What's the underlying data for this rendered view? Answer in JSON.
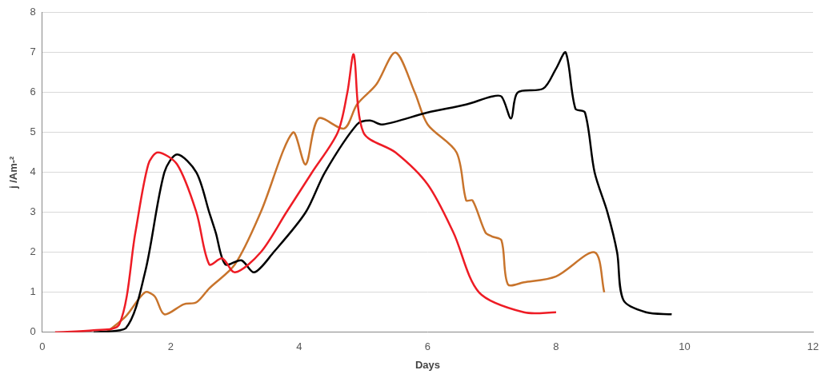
{
  "chart_data": {
    "type": "line",
    "x_label": "Days",
    "y_label": "j /Am-²",
    "xlim": [
      0,
      12
    ],
    "xticks": [
      0,
      2,
      4,
      6,
      8,
      10,
      12
    ],
    "ylim": [
      0,
      8
    ],
    "yticks": [
      0,
      1,
      2,
      3,
      4,
      5,
      6,
      7,
      8
    ],
    "grid": true,
    "series": [
      {
        "color": "#ee1c25",
        "x": [
          0.2,
          0.8,
          1.2,
          1.45,
          1.65,
          1.8,
          2.1,
          2.4,
          2.6,
          2.8,
          3.0,
          3.4,
          3.8,
          4.2,
          4.6,
          4.75,
          4.85,
          5.0,
          5.5,
          6.0,
          6.4,
          6.8,
          7.5,
          8.0
        ],
        "values": [
          0.0,
          0.05,
          0.2,
          2.5,
          4.2,
          4.5,
          4.2,
          3.0,
          1.7,
          1.85,
          1.5,
          2.0,
          3.0,
          4.0,
          5.0,
          6.0,
          6.95,
          5.0,
          4.5,
          3.7,
          2.5,
          1.0,
          0.5,
          0.5
        ]
      },
      {
        "color": "#000000",
        "x": [
          0.8,
          1.3,
          1.6,
          1.9,
          2.1,
          2.4,
          2.6,
          2.7,
          2.85,
          3.1,
          3.3,
          3.6,
          4.1,
          4.4,
          4.9,
          5.1,
          5.3,
          6.0,
          6.6,
          7.0,
          7.15,
          7.3,
          7.4,
          7.8,
          8.0,
          8.15,
          8.3,
          8.45,
          8.6,
          8.8,
          8.95,
          9.05,
          9.4,
          9.8
        ],
        "values": [
          0.0,
          0.1,
          1.5,
          4.0,
          4.45,
          4.0,
          3.0,
          2.5,
          1.7,
          1.8,
          1.5,
          2.0,
          3.0,
          4.0,
          5.2,
          5.3,
          5.2,
          5.5,
          5.7,
          5.9,
          5.9,
          5.35,
          6.0,
          6.1,
          6.6,
          7.0,
          5.6,
          5.5,
          4.0,
          3.0,
          2.0,
          0.8,
          0.5,
          0.45
        ]
      },
      {
        "color": "#c8742c",
        "x": [
          1.0,
          1.3,
          1.6,
          1.75,
          1.9,
          2.2,
          2.4,
          2.6,
          3.0,
          3.4,
          3.9,
          4.1,
          4.3,
          4.7,
          4.9,
          5.2,
          5.5,
          5.8,
          6.0,
          6.45,
          6.6,
          6.7,
          6.9,
          7.0,
          7.15,
          7.25,
          7.5,
          8.0,
          8.6,
          8.75
        ],
        "values": [
          0.0,
          0.4,
          1.0,
          0.9,
          0.45,
          0.7,
          0.75,
          1.1,
          1.7,
          3.0,
          5.0,
          4.2,
          5.35,
          5.1,
          5.7,
          6.2,
          7.0,
          6.0,
          5.2,
          4.5,
          3.3,
          3.3,
          2.5,
          2.4,
          2.3,
          1.2,
          1.25,
          1.4,
          2.0,
          1.0
        ]
      }
    ]
  }
}
